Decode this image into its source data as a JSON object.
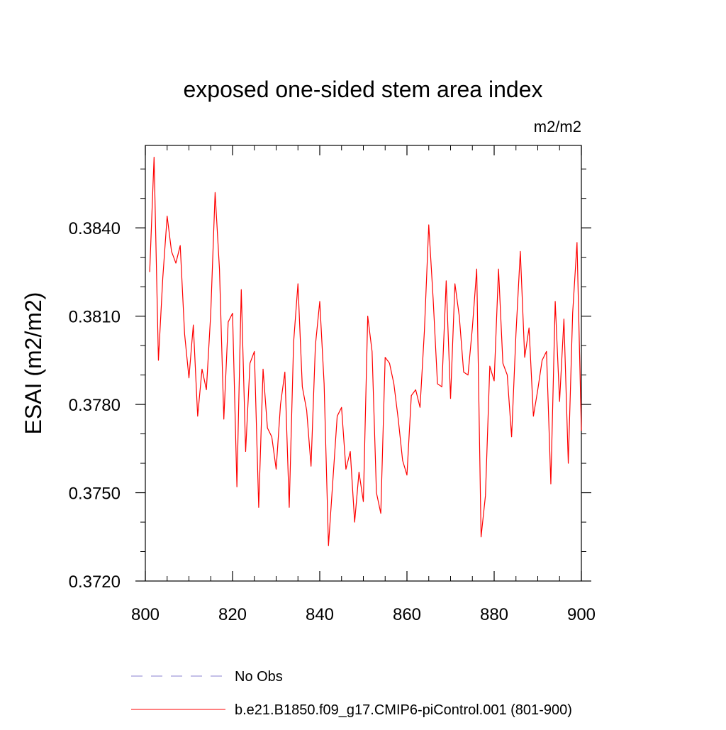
{
  "chart_data": {
    "type": "line",
    "title": "exposed one-sided stem area index",
    "units": "m2/m2",
    "xlabel": "",
    "ylabel": "ESAI  (m2/m2)",
    "xlim": [
      800,
      900
    ],
    "ylim": [
      0.372,
      0.3868
    ],
    "xticks": [
      800,
      820,
      840,
      860,
      880,
      900
    ],
    "xtick_labels": [
      "800",
      "820",
      "840",
      "860",
      "880",
      "900"
    ],
    "yticks": [
      0.372,
      0.375,
      0.378,
      0.381,
      0.384
    ],
    "ytick_labels": [
      "0.3720",
      "0.3750",
      "0.3780",
      "0.3810",
      "0.3840"
    ],
    "grid": false,
    "series": [
      {
        "name": "b.e21.B1850.f09_g17.CMIP6-piControl.001 (801-900)",
        "color": "#ff0000",
        "style": "solid",
        "x": [
          801,
          802,
          803,
          804,
          805,
          806,
          807,
          808,
          809,
          810,
          811,
          812,
          813,
          814,
          815,
          816,
          817,
          818,
          819,
          820,
          821,
          822,
          823,
          824,
          825,
          826,
          827,
          828,
          829,
          830,
          831,
          832,
          833,
          834,
          835,
          836,
          837,
          838,
          839,
          840,
          841,
          842,
          843,
          844,
          845,
          846,
          847,
          848,
          849,
          850,
          851,
          852,
          853,
          854,
          855,
          856,
          857,
          858,
          859,
          860,
          861,
          862,
          863,
          864,
          865,
          866,
          867,
          868,
          869,
          870,
          871,
          872,
          873,
          874,
          875,
          876,
          877,
          878,
          879,
          880,
          881,
          882,
          883,
          884,
          885,
          886,
          887,
          888,
          889,
          890,
          891,
          892,
          893,
          894,
          895,
          896,
          897,
          898,
          899,
          900
        ],
        "values": [
          0.3825,
          0.3864,
          0.3795,
          0.3823,
          0.3844,
          0.3832,
          0.3828,
          0.3834,
          0.3804,
          0.3789,
          0.3807,
          0.3776,
          0.3792,
          0.3785,
          0.3811,
          0.3852,
          0.3826,
          0.3775,
          0.3808,
          0.3811,
          0.3752,
          0.3819,
          0.3764,
          0.3794,
          0.3798,
          0.3745,
          0.3792,
          0.3772,
          0.3769,
          0.3758,
          0.378,
          0.3791,
          0.3745,
          0.3801,
          0.3821,
          0.3786,
          0.3778,
          0.3759,
          0.38,
          0.3815,
          0.3787,
          0.3732,
          0.3754,
          0.3776,
          0.3779,
          0.3758,
          0.3764,
          0.374,
          0.3757,
          0.3747,
          0.381,
          0.3798,
          0.375,
          0.3743,
          0.3796,
          0.3794,
          0.3787,
          0.3775,
          0.3761,
          0.3756,
          0.3783,
          0.3785,
          0.3779,
          0.3805,
          0.3841,
          0.3816,
          0.3787,
          0.3786,
          0.3822,
          0.3782,
          0.3821,
          0.381,
          0.3791,
          0.379,
          0.3806,
          0.3826,
          0.3735,
          0.3749,
          0.3793,
          0.3788,
          0.3826,
          0.3794,
          0.379,
          0.3769,
          0.3804,
          0.3832,
          0.3796,
          0.3806,
          0.3776,
          0.3785,
          0.3795,
          0.3798,
          0.3753,
          0.3815,
          0.3781,
          0.3809,
          0.376,
          0.3811,
          0.3835,
          0.3771
        ]
      },
      {
        "name": "No Obs",
        "color": "#8a7fd0",
        "style": "dashed",
        "x": [],
        "values": []
      }
    ],
    "legend": {
      "placement": "bottom",
      "entries": [
        "No Obs",
        "b.e21.B1850.f09_g17.CMIP6-piControl.001 (801-900)"
      ]
    }
  }
}
